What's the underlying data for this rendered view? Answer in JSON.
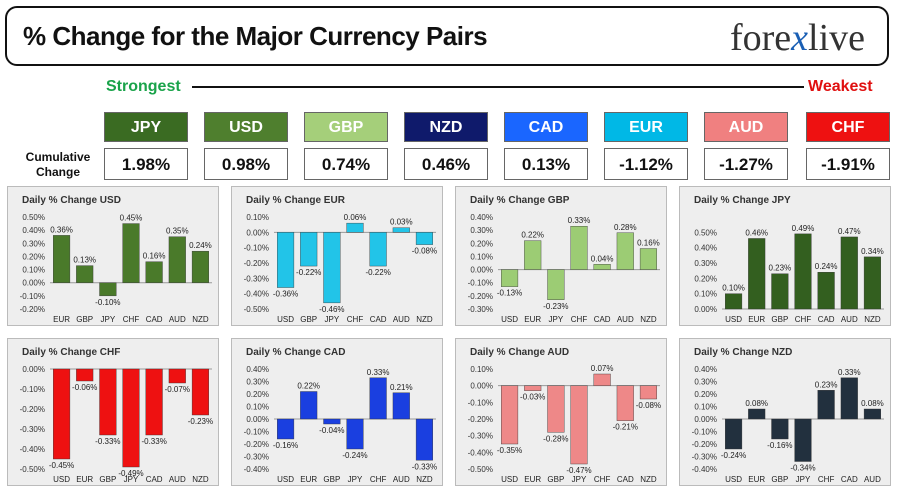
{
  "header": {
    "title": "% Change for the Major Currency Pairs",
    "logo_left": "fore",
    "logo_x": "x",
    "logo_right": "live"
  },
  "strongest_label": "Strongest",
  "weakest_label": "Weakest",
  "cumulative_label": "Cumulative Change",
  "ranking": [
    {
      "ccy": "JPY",
      "value": "1.98%",
      "color": "#3a6b22"
    },
    {
      "ccy": "USD",
      "value": "0.98%",
      "color": "#4f7f2e"
    },
    {
      "ccy": "GBP",
      "value": "0.74%",
      "color": "#a5cf7a"
    },
    {
      "ccy": "NZD",
      "value": "0.46%",
      "color": "#0f1a6b"
    },
    {
      "ccy": "CAD",
      "value": "0.13%",
      "color": "#1a66ff"
    },
    {
      "ccy": "EUR",
      "value": "-1.12%",
      "color": "#00b8e6"
    },
    {
      "ccy": "AUD",
      "value": "-1.27%",
      "color": "#f08080"
    },
    {
      "ccy": "CHF",
      "value": "-1.91%",
      "color": "#ee1111"
    }
  ],
  "chart_data": [
    {
      "type": "bar",
      "title": "Daily % Change USD",
      "categories": [
        "EUR",
        "GBP",
        "JPY",
        "CHF",
        "CAD",
        "AUD",
        "NZD"
      ],
      "values": [
        0.36,
        0.13,
        -0.1,
        0.45,
        0.16,
        0.35,
        0.24
      ],
      "labels": [
        "0.36%",
        "0.13%",
        "-0.10%",
        "0.45%",
        "0.16%",
        "0.35%",
        "0.24%"
      ],
      "ylim": [
        -0.2,
        0.5
      ],
      "ticks": [
        0.5,
        0.4,
        0.3,
        0.2,
        0.1,
        0.0,
        -0.1,
        -0.2
      ],
      "tick_labels": [
        "0.50%",
        "0.40%",
        "0.30%",
        "0.20%",
        "0.10%",
        "0.00%",
        "-0.10%",
        "-0.20%"
      ],
      "color": "#4a7a2a"
    },
    {
      "type": "bar",
      "title": "Daily % Change EUR",
      "categories": [
        "USD",
        "GBP",
        "JPY",
        "CHF",
        "CAD",
        "AUD",
        "NZD"
      ],
      "values": [
        -0.36,
        -0.22,
        -0.46,
        0.06,
        -0.22,
        0.03,
        -0.08
      ],
      "labels": [
        "-0.36%",
        "-0.22%",
        "-0.46%",
        "0.06%",
        "-0.22%",
        "0.03%",
        "-0.08%"
      ],
      "ylim": [
        -0.5,
        0.1
      ],
      "ticks": [
        0.1,
        0.0,
        -0.1,
        -0.2,
        -0.3,
        -0.4,
        -0.5
      ],
      "tick_labels": [
        "0.10%",
        "0.00%",
        "-0.10%",
        "-0.20%",
        "-0.30%",
        "-0.40%",
        "-0.50%"
      ],
      "color": "#22c4e8"
    },
    {
      "type": "bar",
      "title": "Daily % Change GBP",
      "categories": [
        "USD",
        "EUR",
        "JPY",
        "CHF",
        "CAD",
        "AUD",
        "NZD"
      ],
      "values": [
        -0.13,
        0.22,
        -0.23,
        0.33,
        0.04,
        0.28,
        0.16
      ],
      "labels": [
        "-0.13%",
        "0.22%",
        "-0.23%",
        "0.33%",
        "0.04%",
        "0.28%",
        "0.16%"
      ],
      "ylim": [
        -0.3,
        0.4
      ],
      "ticks": [
        0.4,
        0.3,
        0.2,
        0.1,
        0.0,
        -0.1,
        -0.2,
        -0.3
      ],
      "tick_labels": [
        "0.40%",
        "0.30%",
        "0.20%",
        "0.10%",
        "0.00%",
        "-0.10%",
        "-0.20%",
        "-0.30%"
      ],
      "color": "#9ccc74"
    },
    {
      "type": "bar",
      "title": "Daily % Change JPY",
      "categories": [
        "USD",
        "EUR",
        "GBP",
        "CHF",
        "CAD",
        "AUD",
        "NZD"
      ],
      "values": [
        0.1,
        0.46,
        0.23,
        0.49,
        0.24,
        0.47,
        0.34
      ],
      "labels": [
        "0.10%",
        "0.46%",
        "0.23%",
        "0.49%",
        "0.24%",
        "0.47%",
        "0.34%"
      ],
      "ylim": [
        0.0,
        0.6
      ],
      "ticks": [
        0.5,
        0.4,
        0.3,
        0.2,
        0.1,
        0.0
      ],
      "tick_labels": [
        "0.50%",
        "0.40%",
        "0.30%",
        "0.20%",
        "0.10%",
        "0.00%"
      ],
      "color": "#335f1f"
    },
    {
      "type": "bar",
      "title": "Daily % Change CHF",
      "categories": [
        "USD",
        "EUR",
        "GBP",
        "JPY",
        "CAD",
        "AUD",
        "NZD"
      ],
      "values": [
        -0.45,
        -0.06,
        -0.33,
        -0.49,
        -0.33,
        -0.07,
        -0.23
      ],
      "labels": [
        "-0.45%",
        "-0.06%",
        "-0.33%",
        "-0.49%",
        "-0.33%",
        "-0.07%",
        "-0.23%"
      ],
      "ylim": [
        -0.5,
        0.0
      ],
      "ticks": [
        0.0,
        -0.1,
        -0.2,
        -0.3,
        -0.4,
        -0.5
      ],
      "tick_labels": [
        "0.00%",
        "-0.10%",
        "-0.20%",
        "-0.30%",
        "-0.40%",
        "-0.50%"
      ],
      "color": "#ee1111"
    },
    {
      "type": "bar",
      "title": "Daily % Change CAD",
      "categories": [
        "USD",
        "EUR",
        "GBP",
        "JPY",
        "CHF",
        "AUD",
        "NZD"
      ],
      "values": [
        -0.16,
        0.22,
        -0.04,
        -0.24,
        0.33,
        0.21,
        -0.33
      ],
      "labels": [
        "-0.16%",
        "0.22%",
        "-0.04%",
        "-0.24%",
        "0.33%",
        "0.21%",
        "-0.33%"
      ],
      "ylim": [
        -0.4,
        0.4
      ],
      "ticks": [
        0.4,
        0.3,
        0.2,
        0.1,
        0.0,
        -0.1,
        -0.2,
        -0.3,
        -0.4
      ],
      "tick_labels": [
        "0.40%",
        "0.30%",
        "0.20%",
        "0.10%",
        "0.00%",
        "-0.10%",
        "-0.20%",
        "-0.30%",
        "-0.40%"
      ],
      "color": "#1a3fe0"
    },
    {
      "type": "bar",
      "title": "Daily % Change AUD",
      "categories": [
        "USD",
        "EUR",
        "GBP",
        "JPY",
        "CHF",
        "CAD",
        "NZD"
      ],
      "values": [
        -0.35,
        -0.03,
        -0.28,
        -0.47,
        0.07,
        -0.21,
        -0.08
      ],
      "labels": [
        "-0.35%",
        "-0.03%",
        "-0.28%",
        "-0.47%",
        "0.07%",
        "-0.21%",
        "-0.08%"
      ],
      "ylim": [
        -0.5,
        0.1
      ],
      "ticks": [
        0.1,
        0.0,
        -0.1,
        -0.2,
        -0.3,
        -0.4,
        -0.5
      ],
      "tick_labels": [
        "0.10%",
        "0.00%",
        "-0.10%",
        "-0.20%",
        "-0.30%",
        "-0.40%",
        "-0.50%"
      ],
      "color": "#ee8888"
    },
    {
      "type": "bar",
      "title": "Daily % Change NZD",
      "categories": [
        "USD",
        "EUR",
        "GBP",
        "JPY",
        "CHF",
        "CAD",
        "AUD"
      ],
      "values": [
        -0.24,
        0.08,
        -0.16,
        -0.34,
        0.23,
        0.33,
        0.08
      ],
      "labels": [
        "-0.24%",
        "0.08%",
        "-0.16%",
        "-0.34%",
        "0.23%",
        "0.33%",
        "0.08%"
      ],
      "ylim": [
        -0.4,
        0.4
      ],
      "ticks": [
        0.4,
        0.3,
        0.2,
        0.1,
        0.0,
        -0.1,
        -0.2,
        -0.3,
        -0.4
      ],
      "tick_labels": [
        "0.40%",
        "0.30%",
        "0.20%",
        "0.10%",
        "0.00%",
        "-0.10%",
        "-0.20%",
        "-0.30%",
        "-0.40%"
      ],
      "color": "#22303e"
    }
  ]
}
